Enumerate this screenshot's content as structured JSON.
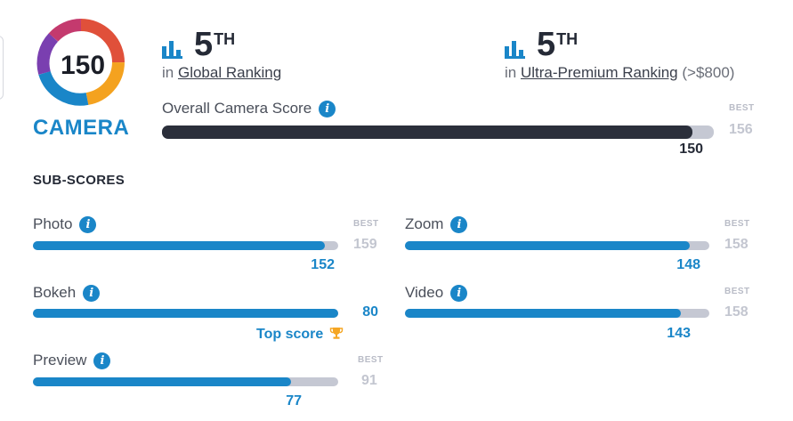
{
  "header": {
    "badge_score": "150",
    "badge_label": "CAMERA",
    "global": {
      "rank": "5",
      "suffix": "TH",
      "prefix": "in",
      "link": "Global Ranking",
      "extra": ""
    },
    "premium": {
      "rank": "5",
      "suffix": "TH",
      "prefix": "in",
      "link": "Ultra-Premium Ranking",
      "extra": "(>$800)"
    }
  },
  "overall": {
    "label": "Overall Camera Score",
    "best_tag": "BEST",
    "best": 156,
    "score": 150,
    "fill_fraction": 0.962
  },
  "section_title": "SUB-SCORES",
  "info_glyph": "i",
  "subscores": [
    {
      "label": "Photo",
      "best_tag": "BEST",
      "best": 159,
      "score": 152,
      "fill_fraction": 0.956
    },
    {
      "label": "Zoom",
      "best_tag": "BEST",
      "best": 158,
      "score": 148,
      "fill_fraction": 0.937
    },
    {
      "label": "Bokeh",
      "best_tag": "",
      "best": "",
      "score": 80,
      "fill_fraction": 1.0,
      "note": "Top score"
    },
    {
      "label": "Video",
      "best_tag": "BEST",
      "best": 158,
      "score": 143,
      "fill_fraction": 0.905
    },
    {
      "label": "Preview",
      "best_tag": "BEST",
      "best": 91,
      "score": 77,
      "fill_fraction": 0.846
    }
  ],
  "colors": {
    "accent": "#1a86c8",
    "overall_fill": "#2b2f3b",
    "track": "#c5c8d3",
    "best_text": "#c3c6d0",
    "trophy": "#f5a623"
  },
  "icons": {
    "rank": "bar-chart-icon",
    "info": "info-icon",
    "trophy": "trophy-icon"
  }
}
